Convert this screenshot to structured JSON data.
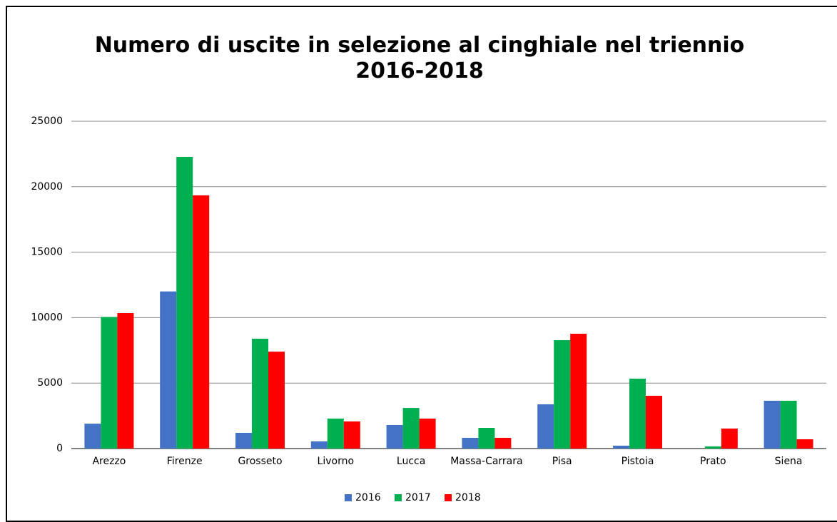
{
  "chart_data": {
    "type": "bar",
    "title": "Numero di uscite in selezione al cinghiale nel triennio 2016-2018",
    "categories": [
      "Arezzo",
      "Firenze",
      "Grosseto",
      "Livorno",
      "Lucca",
      "Massa-Carrara",
      "Pisa",
      "Pistoia",
      "Prato",
      "Siena"
    ],
    "series": [
      {
        "name": "2016",
        "color": "#4472c4",
        "values": [
          1900,
          12000,
          1200,
          550,
          1800,
          820,
          3380,
          220,
          0,
          3650
        ]
      },
      {
        "name": "2017",
        "color": "#00b050",
        "values": [
          10050,
          22280,
          8390,
          2290,
          3100,
          1580,
          8280,
          5340,
          160,
          3650
        ]
      },
      {
        "name": "2018",
        "color": "#ff0000",
        "values": [
          10350,
          19340,
          7400,
          2070,
          2290,
          820,
          8770,
          4030,
          1530,
          710
        ]
      }
    ],
    "ylim": [
      0,
      25000
    ],
    "yticks": [
      0,
      5000,
      10000,
      15000,
      20000,
      25000
    ],
    "grid": true,
    "legend": "bottom"
  }
}
